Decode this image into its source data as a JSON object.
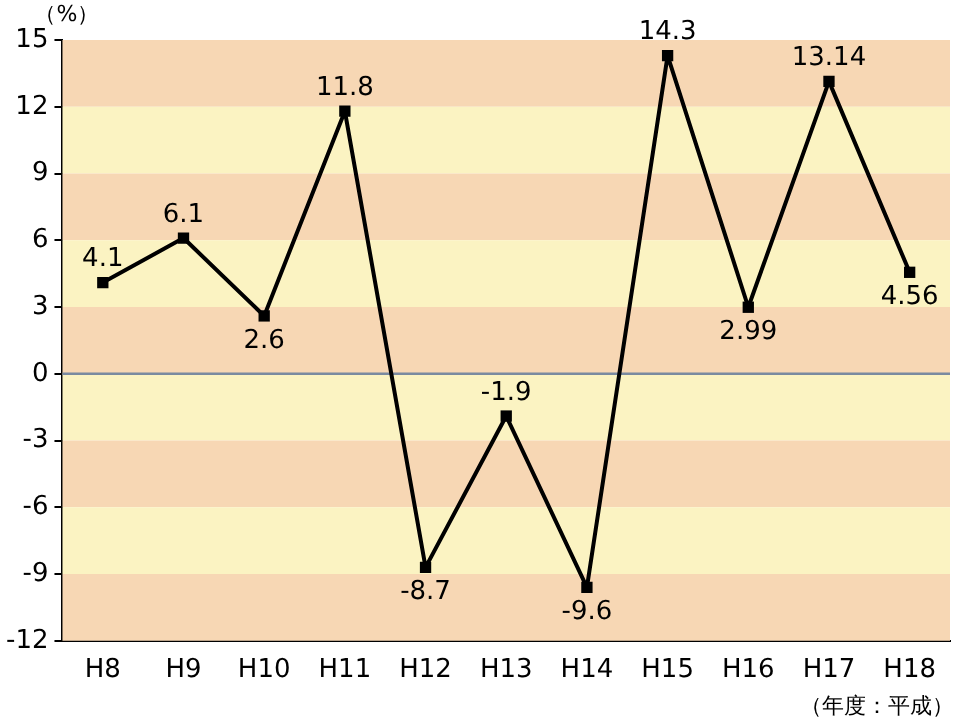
{
  "chart_data": {
    "type": "line",
    "ylabel": "（%）",
    "xlabel": "（年度：平成）",
    "categories": [
      "H8",
      "H9",
      "H10",
      "H11",
      "H12",
      "H13",
      "H14",
      "H15",
      "H16",
      "H17",
      "H18"
    ],
    "series": [
      {
        "color": "#000000",
        "values": [
          4.1,
          6.1,
          2.6,
          11.8,
          -8.7,
          -1.9,
          -9.6,
          14.3,
          2.99,
          13.14,
          4.56
        ]
      }
    ],
    "ylim": [
      -12,
      15
    ],
    "yticks": [
      -12,
      -9,
      -6,
      -3,
      0,
      3,
      6,
      9,
      12,
      15
    ],
    "bands": [
      {
        "axis": "y",
        "from": 12,
        "to": 15,
        "color": "#f7d7b4"
      },
      {
        "axis": "y",
        "from": 9,
        "to": 12,
        "color": "#fbf3c2"
      },
      {
        "axis": "y",
        "from": 6,
        "to": 9,
        "color": "#f7d7b4"
      },
      {
        "axis": "y",
        "from": 3,
        "to": 6,
        "color": "#fbf3c2"
      },
      {
        "axis": "y",
        "from": 0,
        "to": 3,
        "color": "#f7d7b4"
      },
      {
        "axis": "y",
        "from": -3,
        "to": 0,
        "color": "#fbf3c2"
      },
      {
        "axis": "y",
        "from": -6,
        "to": -3,
        "color": "#f7d7b4"
      },
      {
        "axis": "y",
        "from": -9,
        "to": -6,
        "color": "#fbf3c2"
      },
      {
        "axis": "y",
        "from": -12,
        "to": -9,
        "color": "#f7d7b4"
      }
    ],
    "ref_lines": [
      {
        "axis": "y",
        "value": 0,
        "color": "#7a8aa0",
        "line_style": "solid"
      }
    ],
    "grid": false,
    "legend": false,
    "marker": "square",
    "line_style": "solid",
    "data_labels": true
  }
}
